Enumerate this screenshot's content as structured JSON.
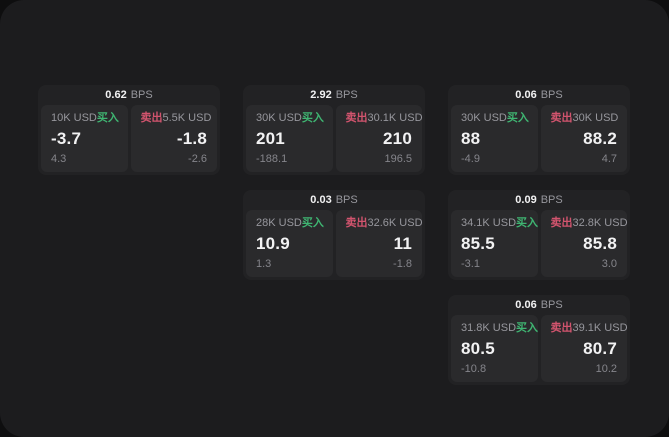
{
  "labels": {
    "bps_unit": "BPS",
    "buy": "买入",
    "sell": "卖出"
  },
  "colors": {
    "buy_green": "#3fb572",
    "sell_red": "#d2546e",
    "value_white": "#f2f2f3",
    "label_gray": "#97979d",
    "sub_gray": "#85858b",
    "panel_bg": "#1c1c1e",
    "card_bg": "#222224",
    "pane_bg": "#2a2a2c"
  },
  "cards": [
    {
      "col": 0,
      "row": 0,
      "bps": "0.62",
      "buy": {
        "amount": "10K USD",
        "price": "-3.7",
        "sub": "4.3"
      },
      "sell": {
        "amount": "5.5K USD",
        "price": "-1.8",
        "sub": "-2.6"
      }
    },
    {
      "col": 1,
      "row": 0,
      "bps": "2.92",
      "buy": {
        "amount": "30K USD",
        "price": "201",
        "sub": "-188.1"
      },
      "sell": {
        "amount": "30.1K USD",
        "price": "210",
        "sub": "196.5"
      }
    },
    {
      "col": 2,
      "row": 0,
      "bps": "0.06",
      "buy": {
        "amount": "30K USD",
        "price": "88",
        "sub": "-4.9"
      },
      "sell": {
        "amount": "30K USD",
        "price": "88.2",
        "sub": "4.7"
      }
    },
    {
      "col": 1,
      "row": 1,
      "bps": "0.03",
      "buy": {
        "amount": "28K USD",
        "price": "10.9",
        "sub": "1.3"
      },
      "sell": {
        "amount": "32.6K USD",
        "price": "11",
        "sub": "-1.8"
      }
    },
    {
      "col": 2,
      "row": 1,
      "bps": "0.09",
      "buy": {
        "amount": "34.1K USD",
        "price": "85.5",
        "sub": "-3.1"
      },
      "sell": {
        "amount": "32.8K USD",
        "price": "85.8",
        "sub": "3.0"
      }
    },
    {
      "col": 2,
      "row": 2,
      "bps": "0.06",
      "buy": {
        "amount": "31.8K USD",
        "price": "80.5",
        "sub": "-10.8"
      },
      "sell": {
        "amount": "39.1K USD",
        "price": "80.7",
        "sub": "10.2"
      }
    }
  ]
}
